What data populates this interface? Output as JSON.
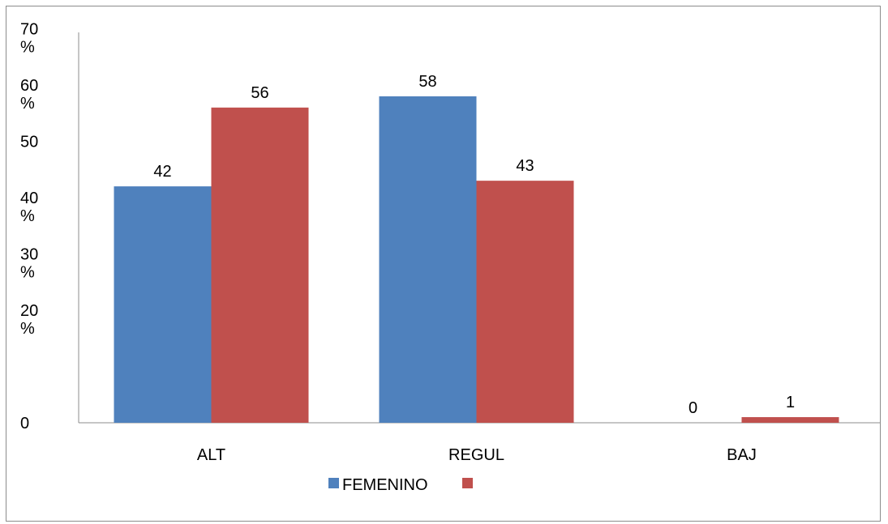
{
  "chart_data": {
    "type": "bar",
    "categories": [
      "ALT",
      "REGUL",
      "BAJ"
    ],
    "series": [
      {
        "name": "FEMENINO",
        "values": [
          42,
          58,
          0
        ],
        "color": "#4F81BD"
      },
      {
        "values": [
          56,
          43,
          1
        ],
        "color": "#C0504D"
      }
    ],
    "y_ticks": [
      {
        "value": 70,
        "label": "70\n%"
      },
      {
        "value": 60,
        "label": "60\n%"
      },
      {
        "value": 50,
        "label": "50"
      },
      {
        "value": 40,
        "label": "40\n%"
      },
      {
        "value": 30,
        "label": "30\n%"
      },
      {
        "value": 20,
        "label": "20\n%"
      },
      {
        "value": 0,
        "label": "0"
      }
    ],
    "ylim": [
      0,
      70
    ],
    "grid": false,
    "legend_position": "bottom",
    "title": "",
    "xlabel": "",
    "ylabel": ""
  }
}
